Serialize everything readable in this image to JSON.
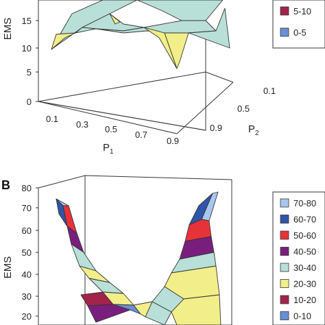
{
  "chart_data": [
    {
      "type": "surface",
      "panel": "",
      "zlabel": "EMS",
      "xlabel": "P",
      "xlabel_sub": "1",
      "ylabel": "P",
      "ylabel_sub": "2",
      "z_ticks": [
        "0",
        "5",
        "10",
        "15"
      ],
      "x_ticks": [
        "0.1",
        "0.3",
        "0.5",
        "0.7",
        "0.9"
      ],
      "y_ticks": [
        "0.1",
        "0.5",
        "0.9"
      ],
      "legend": [
        {
          "label": "5-10",
          "color": "#a3234a"
        },
        {
          "label": "0-5",
          "color": "#6b8fd4"
        }
      ],
      "band_colors": {
        "0-5": "#6b8fd4",
        "5-10": "#a3234a",
        "10-15": "#f2ee8a",
        "15-20": "#b8e0d8"
      }
    },
    {
      "type": "surface",
      "panel": "B",
      "zlabel": "EMS",
      "z_ticks": [
        "20",
        "30",
        "40",
        "50",
        "60",
        "70",
        "80"
      ],
      "legend": [
        {
          "label": "70-80",
          "color": "#a9c6ee"
        },
        {
          "label": "60-70",
          "color": "#2f55a8"
        },
        {
          "label": "50-60",
          "color": "#e8323a"
        },
        {
          "label": "40-50",
          "color": "#7a1e7e"
        },
        {
          "label": "30-40",
          "color": "#b8e0d8"
        },
        {
          "label": "20-30",
          "color": "#f2ee8a"
        },
        {
          "label": "10-20",
          "color": "#a3234a"
        },
        {
          "label": "0-10",
          "color": "#6b8fd4"
        }
      ]
    }
  ]
}
